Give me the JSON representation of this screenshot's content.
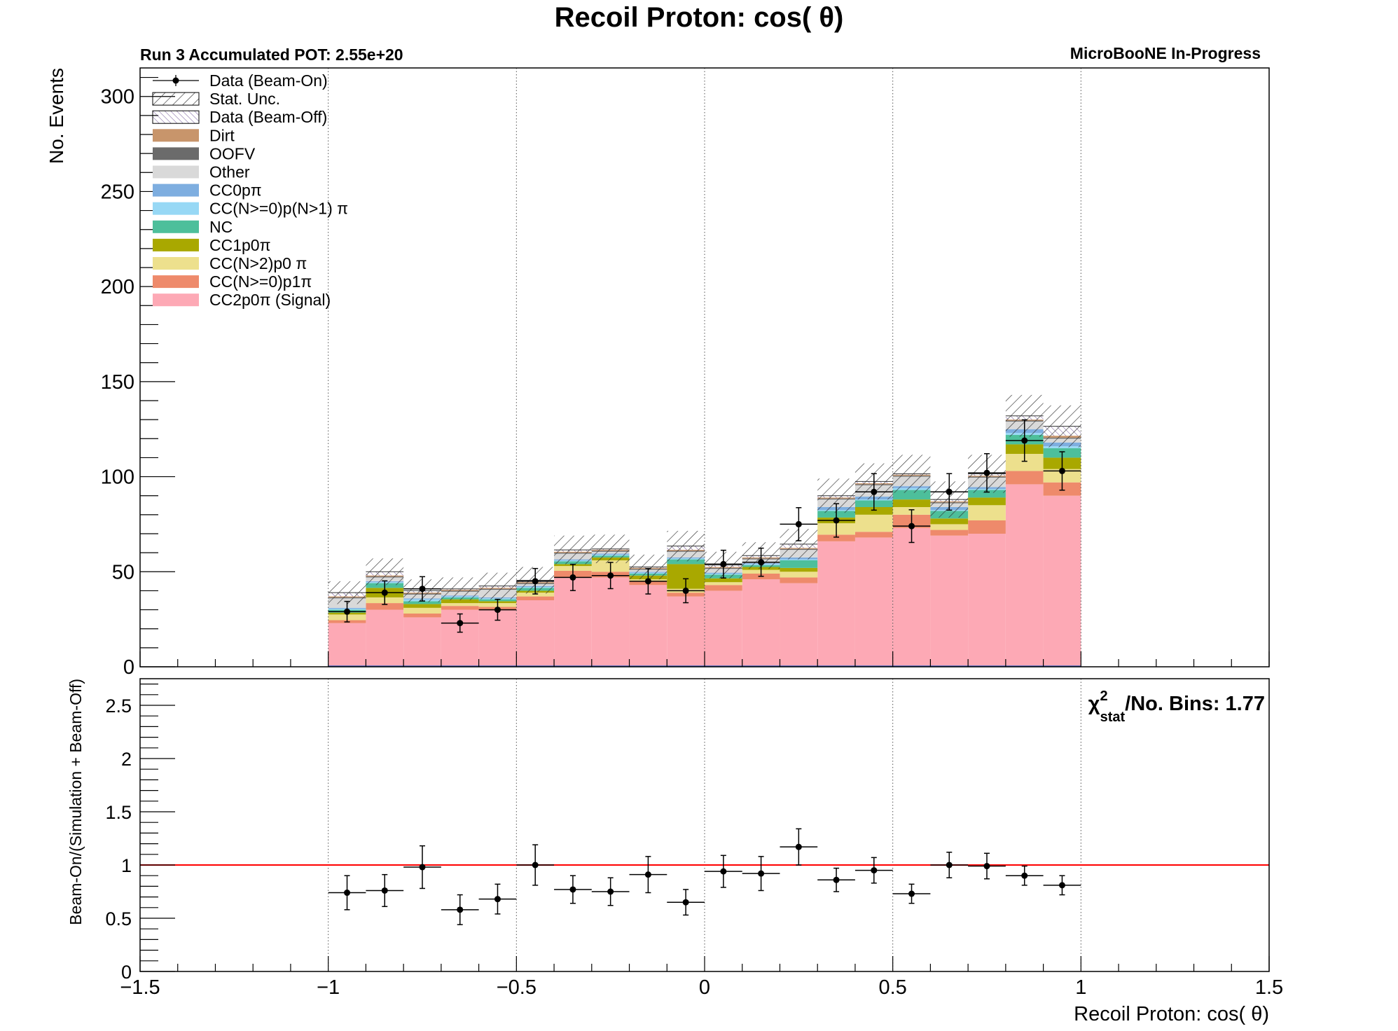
{
  "title": "Recoil Proton: cos( θ)",
  "run_label": "Run 3 Accumulated POT: 2.55e+20",
  "experiment_label": "MicroBooNE In-Progress",
  "colors": {
    "frame": "#000000",
    "grid": "#555555",
    "ratio_line": "#ff0000",
    "hatch": "#333333"
  },
  "chart_data": [
    {
      "type": "bar",
      "subtype": "stacked-histogram",
      "xlabel": "",
      "ylabel": "No. Events",
      "xlim": [
        -1.5,
        1.5
      ],
      "ylim": [
        0,
        315
      ],
      "grid": "vertical dotted at major x ticks",
      "y_ticks": [
        0,
        50,
        100,
        150,
        200,
        250,
        300
      ],
      "x_ticks": [
        -1.5,
        -1,
        -0.5,
        0,
        0.5,
        1,
        1.5
      ],
      "bin_edges": [
        -1.0,
        -0.9,
        -0.8,
        -0.7,
        -0.6,
        -0.5,
        -0.4,
        -0.3,
        -0.2,
        -0.1,
        0.0,
        0.1,
        0.2,
        0.3,
        0.4,
        0.5,
        0.6,
        0.7,
        0.8,
        0.9,
        1.0
      ],
      "legend_position": "top-left",
      "legend": [
        {
          "label": "Data (Beam-On)",
          "style": "marker",
          "color": "#000000"
        },
        {
          "label": "Stat. Unc.",
          "style": "hatch",
          "color": "#333333"
        },
        {
          "label": "Data (Beam-Off)",
          "style": "hatch-purple",
          "color": "#6a4c93"
        },
        {
          "label": "Dirt",
          "style": "fill",
          "color": "#c8956b"
        },
        {
          "label": "OOFV",
          "style": "fill",
          "color": "#6b6b6b"
        },
        {
          "label": "Other",
          "style": "fill",
          "color": "#d9d9d9"
        },
        {
          "label": "CC0pπ",
          "style": "fill",
          "color": "#7eaee0"
        },
        {
          "label": "CC(N>=0)p(N>1) π",
          "style": "fill",
          "color": "#97d8f5"
        },
        {
          "label": "NC",
          "style": "fill",
          "color": "#4dbf9b"
        },
        {
          "label": "CC1p0π",
          "style": "fill",
          "color": "#a9a800"
        },
        {
          "label": "CC(N>2)p0 π",
          "style": "fill",
          "color": "#ede08d"
        },
        {
          "label": "CC(N>=0)p1π",
          "style": "fill",
          "color": "#ee8a6b"
        },
        {
          "label": "CC2p0π (Signal)",
          "style": "fill",
          "color": "#fda9b5"
        }
      ],
      "series": [
        {
          "name": "CC2p0π (Signal)",
          "color": "#fda9b5",
          "values": [
            23,
            30,
            26,
            30,
            30,
            35,
            47,
            47,
            43,
            37,
            40,
            46,
            44,
            66,
            68,
            73,
            69,
            70,
            96,
            90
          ]
        },
        {
          "name": "CC(N>=0)p1π",
          "color": "#ee8a6b",
          "values": [
            1.5,
            3.5,
            2,
            2,
            1.5,
            2,
            3.5,
            3,
            2,
            2,
            3,
            3,
            3,
            3.5,
            3,
            7,
            3,
            7,
            7,
            7
          ]
        },
        {
          "name": "CC(N>2)p0 π",
          "color": "#ede08d",
          "values": [
            3,
            3,
            3,
            1.5,
            2,
            2,
            2.5,
            6,
            1,
            2,
            1.5,
            2,
            3,
            6,
            9,
            4,
            3,
            8,
            9,
            7
          ]
        },
        {
          "name": "CC1p0π",
          "color": "#a9a800",
          "values": [
            1,
            5,
            2,
            2,
            1,
            1,
            1,
            1.5,
            2,
            13,
            2,
            1.5,
            2,
            3,
            4,
            4,
            3,
            4,
            5,
            6
          ]
        },
        {
          "name": "NC",
          "color": "#4dbf9b",
          "values": [
            1.5,
            2.5,
            1.5,
            1,
            1,
            1.5,
            1.5,
            1,
            1,
            2.5,
            2,
            1,
            4,
            3.5,
            3.5,
            5,
            4,
            4,
            5,
            5
          ]
        },
        {
          "name": "CC(N>=0)p(N>1) π",
          "color": "#97d8f5",
          "values": [
            0.5,
            0.5,
            1,
            0.5,
            0.5,
            0.5,
            0.5,
            0.5,
            0.5,
            0.5,
            0.5,
            0.5,
            0.5,
            0.5,
            0.5,
            1,
            0.5,
            0.5,
            1,
            1
          ]
        },
        {
          "name": "CC0pπ",
          "color": "#7eaee0",
          "values": [
            0.5,
            0.5,
            0.5,
            0.5,
            0.5,
            0.5,
            0.5,
            0.5,
            0.5,
            0.5,
            0.5,
            0.5,
            1,
            1.5,
            1.5,
            1,
            1.5,
            1,
            2,
            2
          ]
        },
        {
          "name": "Other",
          "color": "#d9d9d9",
          "values": [
            5,
            2,
            2,
            2,
            4,
            1,
            3,
            1,
            1,
            3,
            2,
            2,
            4,
            4,
            6,
            5,
            2,
            5,
            4,
            2
          ]
        },
        {
          "name": "OOFV",
          "color": "#6b6b6b",
          "values": [
            0.5,
            0.5,
            0.5,
            0.5,
            0.5,
            0.5,
            0.5,
            0.5,
            0.5,
            0.5,
            0.5,
            0.5,
            0.5,
            0.5,
            0.5,
            0.5,
            0.5,
            0.5,
            0.5,
            0.5
          ]
        },
        {
          "name": "Dirt",
          "color": "#c8956b",
          "values": [
            0.5,
            0.5,
            0.5,
            0.5,
            0.5,
            0.5,
            0.5,
            0.5,
            0.5,
            0.5,
            0.5,
            0.5,
            0.5,
            0.5,
            0.5,
            0.5,
            0.5,
            0.5,
            0.5,
            1
          ]
        },
        {
          "name": "Data (Beam-Off)",
          "color": "#6a4c93",
          "values": [
            2,
            2,
            1,
            0.5,
            1,
            1,
            1,
            0.5,
            0.5,
            2,
            1,
            1,
            2,
            1,
            1,
            0.5,
            1,
            1,
            2,
            5
          ]
        }
      ],
      "stat_unc": [
        6,
        7,
        6,
        6,
        7,
        7,
        7.5,
        7.5,
        6.5,
        8,
        7,
        7,
        8,
        9,
        9.5,
        10,
        9.5,
        10,
        11,
        11
      ],
      "data": {
        "name": "Data (Beam-On)",
        "values": [
          29,
          39,
          41,
          23,
          30,
          45,
          47,
          48,
          45,
          40,
          54,
          55,
          75,
          77,
          92,
          74,
          92,
          102,
          119,
          103
        ],
        "errors": [
          5.4,
          6.2,
          6.4,
          4.8,
          5.5,
          6.7,
          6.9,
          6.9,
          6.7,
          6.3,
          7.3,
          7.4,
          8.7,
          8.8,
          9.6,
          8.6,
          9.6,
          10.1,
          10.9,
          10.1
        ]
      }
    },
    {
      "type": "scatter",
      "subtype": "ratio",
      "xlabel": "Recoil Proton: cos( θ)",
      "ylabel": "Beam-On/(Simulation + Beam-Off)",
      "xlim": [
        -1.5,
        1.5
      ],
      "ylim": [
        0,
        2.75
      ],
      "y_ticks": [
        0,
        0.5,
        1,
        1.5,
        2,
        2.5
      ],
      "x_ticks": [
        -1.5,
        -1,
        -0.5,
        0,
        0.5,
        1,
        1.5
      ],
      "reference_line": 1,
      "x": [
        -0.95,
        -0.85,
        -0.75,
        -0.65,
        -0.55,
        -0.45,
        -0.35,
        -0.25,
        -0.15,
        -0.05,
        0.05,
        0.15,
        0.25,
        0.35,
        0.45,
        0.55,
        0.65,
        0.75,
        0.85,
        0.95
      ],
      "values": [
        0.74,
        0.76,
        0.98,
        0.58,
        0.68,
        1.0,
        0.77,
        0.75,
        0.91,
        0.65,
        0.94,
        0.92,
        1.17,
        0.86,
        0.95,
        0.73,
        1.0,
        0.99,
        0.9,
        0.81
      ],
      "errors": [
        0.16,
        0.15,
        0.2,
        0.14,
        0.14,
        0.19,
        0.13,
        0.13,
        0.17,
        0.12,
        0.15,
        0.16,
        0.17,
        0.11,
        0.12,
        0.09,
        0.12,
        0.12,
        0.09,
        0.09
      ],
      "annotation": {
        "chi_symbol": "χ",
        "superscript": "2",
        "subscript": "stat",
        "text": "/No. Bins: 1.77"
      }
    }
  ]
}
